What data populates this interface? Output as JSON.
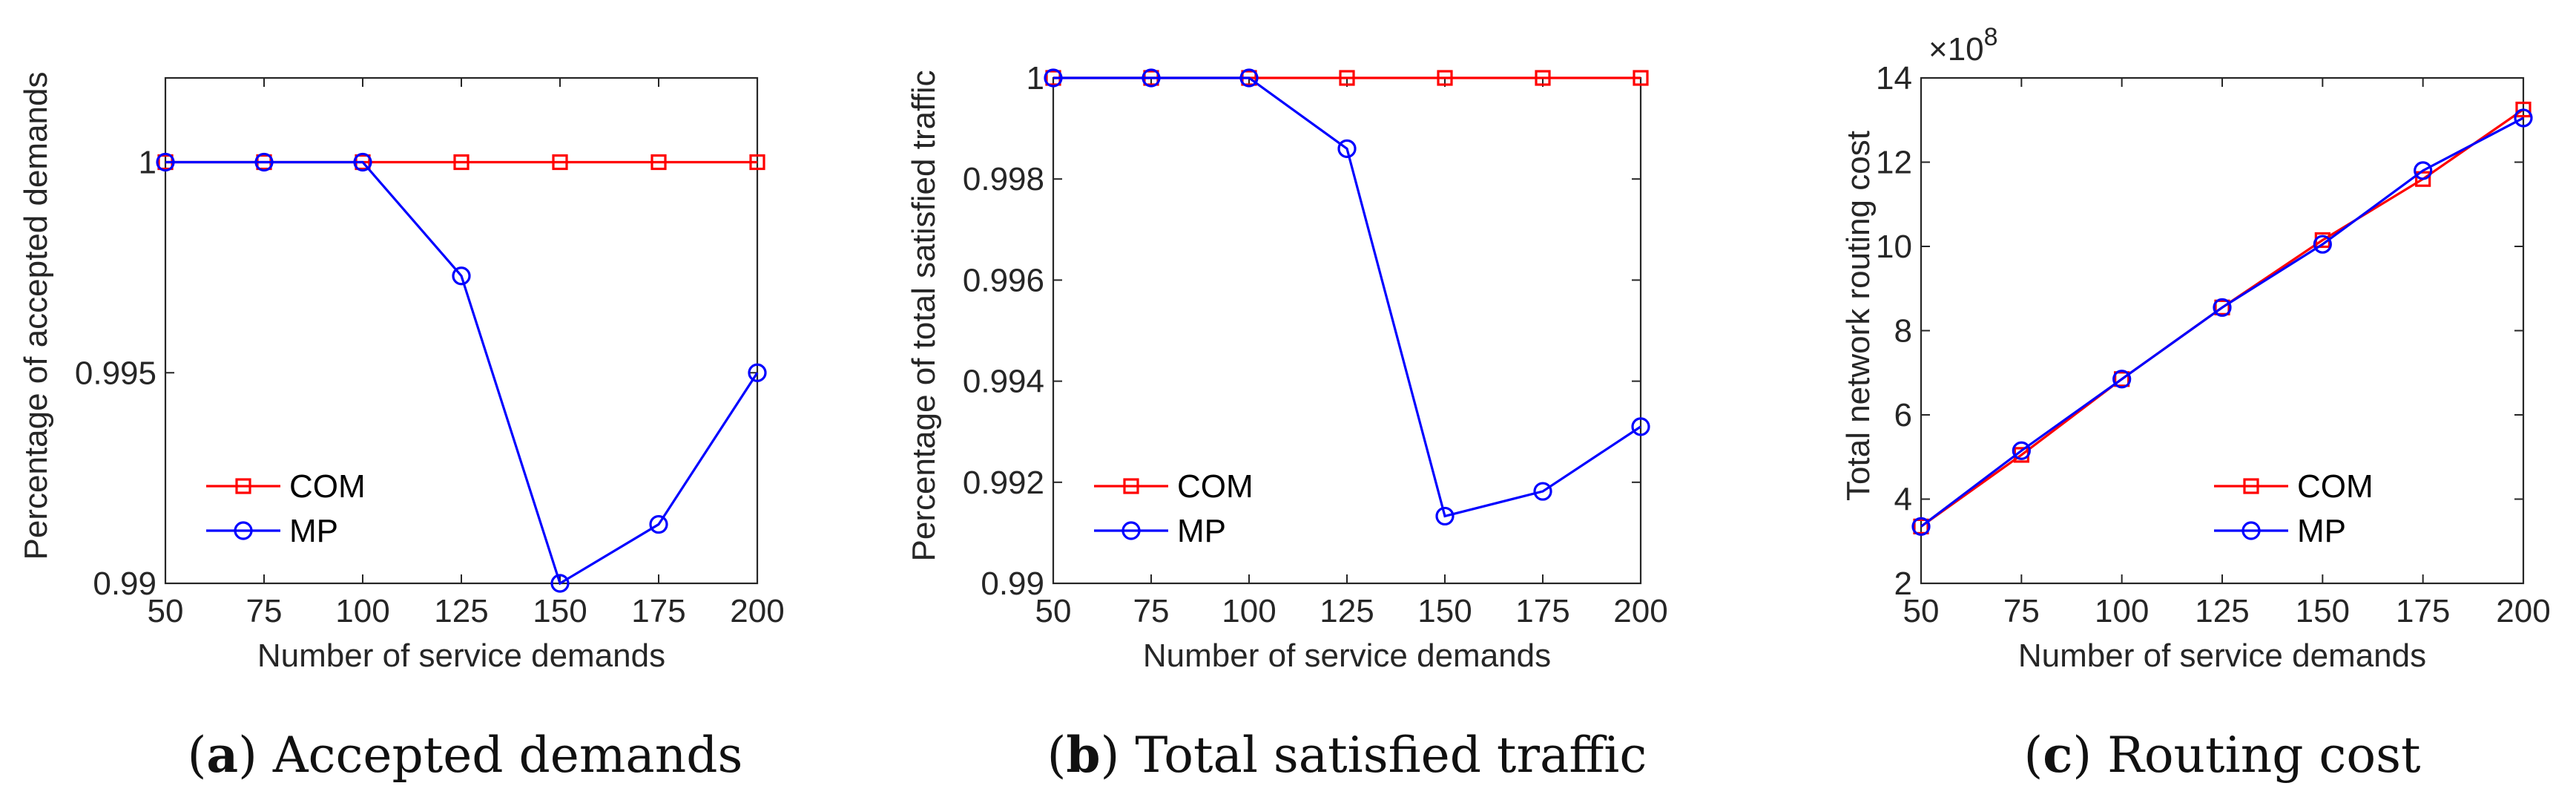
{
  "colors": {
    "com": "#ff0000",
    "mp": "#0000ff",
    "axis": "#262626"
  },
  "chart_data": [
    {
      "type": "line",
      "title": "",
      "caption_letter": "a",
      "caption_text": "Accepted demands",
      "xlabel": "Number of service demands",
      "ylabel": "Percentage of accepted demands",
      "x": [
        50,
        75,
        100,
        125,
        150,
        175,
        200
      ],
      "xlim": [
        50,
        200
      ],
      "ylim": [
        0.99,
        1.002
      ],
      "xticks": [
        50,
        75,
        100,
        125,
        150,
        175,
        200
      ],
      "xtick_labels": [
        "50",
        "75",
        "100",
        "125",
        "150",
        "175",
        "200"
      ],
      "yticks": [
        0.99,
        0.995,
        1
      ],
      "ytick_labels": [
        "0.99",
        "0.995",
        "1"
      ],
      "exponent_label": "",
      "legend_position": "lower-left",
      "series": [
        {
          "name": "COM",
          "marker": "square",
          "values": [
            1,
            1,
            1,
            1,
            1,
            1,
            1
          ]
        },
        {
          "name": "MP",
          "marker": "circle",
          "values": [
            1,
            1,
            1,
            0.9973,
            0.99,
            0.9914,
            0.995
          ]
        }
      ]
    },
    {
      "type": "line",
      "title": "",
      "caption_letter": "b",
      "caption_text": "Total satisfied traffic",
      "xlabel": "Number of service demands",
      "ylabel": "Percentage of total satisfied traffic",
      "x": [
        50,
        75,
        100,
        125,
        150,
        175,
        200
      ],
      "xlim": [
        50,
        200
      ],
      "ylim": [
        0.99,
        1.0
      ],
      "xticks": [
        50,
        75,
        100,
        125,
        150,
        175,
        200
      ],
      "xtick_labels": [
        "50",
        "75",
        "100",
        "125",
        "150",
        "175",
        "200"
      ],
      "yticks": [
        0.99,
        0.992,
        0.994,
        0.996,
        0.998,
        1
      ],
      "ytick_labels": [
        "0.99",
        "0.992",
        "0.994",
        "0.996",
        "0.998",
        "1"
      ],
      "exponent_label": "",
      "legend_position": "lower-left",
      "series": [
        {
          "name": "COM",
          "marker": "square",
          "values": [
            1,
            1,
            1,
            1,
            1,
            1,
            1
          ]
        },
        {
          "name": "MP",
          "marker": "circle",
          "values": [
            1,
            1,
            1,
            0.9986,
            0.99133,
            0.99182,
            0.9931
          ]
        }
      ]
    },
    {
      "type": "line",
      "title": "",
      "caption_letter": "c",
      "caption_text": "Routing cost",
      "xlabel": "Number of service demands",
      "ylabel": "Total network routing cost",
      "x": [
        50,
        75,
        100,
        125,
        150,
        175,
        200
      ],
      "xlim": [
        50,
        200
      ],
      "ylim": [
        2,
        14
      ],
      "xticks": [
        50,
        75,
        100,
        125,
        150,
        175,
        200
      ],
      "xtick_labels": [
        "50",
        "75",
        "100",
        "125",
        "150",
        "175",
        "200"
      ],
      "yticks": [
        2,
        4,
        6,
        8,
        10,
        12,
        14
      ],
      "ytick_labels": [
        "2",
        "4",
        "6",
        "8",
        "10",
        "12",
        "14"
      ],
      "exponent_label": "×10",
      "exponent_power": "8",
      "legend_position": "lower-right",
      "series": [
        {
          "name": "COM",
          "marker": "square",
          "values": [
            3.35,
            5.05,
            6.85,
            8.55,
            10.15,
            11.6,
            13.25
          ]
        },
        {
          "name": "MP",
          "marker": "circle",
          "values": [
            3.35,
            5.15,
            6.85,
            8.55,
            10.05,
            11.8,
            13.05
          ]
        }
      ]
    }
  ]
}
